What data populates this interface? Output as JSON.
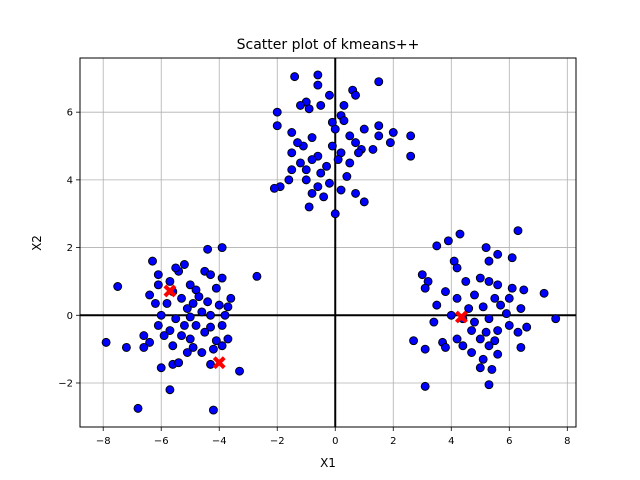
{
  "chart_data": {
    "type": "scatter",
    "title": "Scatter plot of kmeans++",
    "xlabel": "X1",
    "ylabel": "X2",
    "xlim": [
      -8.8,
      8.3
    ],
    "ylim": [
      -3.3,
      7.6
    ],
    "xticks": [
      -8,
      -6,
      -4,
      -2,
      0,
      2,
      4,
      6,
      8
    ],
    "yticks": [
      -2,
      0,
      2,
      4,
      6
    ],
    "xtick_labels": [
      "−8",
      "−6",
      "−4",
      "−2",
      "0",
      "2",
      "4",
      "6",
      "8"
    ],
    "ytick_labels": [
      "−2",
      "0",
      "2",
      "4",
      "6"
    ],
    "grid": true,
    "reference_lines": {
      "x": 0,
      "y": 0,
      "color": "#000000"
    },
    "series": [
      {
        "marker": "circle",
        "color": "#0000ff",
        "edgecolor": "#000000",
        "points": [
          [
            -0.6,
            7.1
          ],
          [
            -1.4,
            7.05
          ],
          [
            -0.6,
            6.8
          ],
          [
            0.6,
            6.65
          ],
          [
            1.5,
            6.9
          ],
          [
            0.7,
            6.5
          ],
          [
            -0.2,
            6.5
          ],
          [
            0.3,
            6.2
          ],
          [
            -1.0,
            6.3
          ],
          [
            -1.2,
            6.2
          ],
          [
            -0.9,
            6.1
          ],
          [
            -0.5,
            6.2
          ],
          [
            -2.0,
            6.0
          ],
          [
            0.2,
            5.9
          ],
          [
            -0.1,
            5.7
          ],
          [
            0.3,
            5.75
          ],
          [
            1.5,
            5.6
          ],
          [
            -2.0,
            5.6
          ],
          [
            1.0,
            5.5
          ],
          [
            0.0,
            5.5
          ],
          [
            -1.5,
            5.4
          ],
          [
            0.5,
            5.3
          ],
          [
            -0.8,
            5.25
          ],
          [
            -1.1,
            5.0
          ],
          [
            -1.3,
            5.1
          ],
          [
            1.5,
            5.3
          ],
          [
            2.0,
            5.4
          ],
          [
            2.6,
            5.3
          ],
          [
            1.9,
            5.1
          ],
          [
            0.7,
            5.1
          ],
          [
            0.9,
            4.9
          ],
          [
            1.3,
            4.9
          ],
          [
            -0.1,
            5.0
          ],
          [
            0.2,
            4.8
          ],
          [
            -0.6,
            4.7
          ],
          [
            -0.8,
            4.6
          ],
          [
            -0.3,
            4.4
          ],
          [
            -1.5,
            4.8
          ],
          [
            -1.2,
            4.5
          ],
          [
            -1.0,
            4.3
          ],
          [
            0.5,
            4.5
          ],
          [
            0.1,
            4.6
          ],
          [
            2.6,
            4.7
          ],
          [
            -0.5,
            4.2
          ],
          [
            -1.0,
            4.0
          ],
          [
            -1.6,
            4.0
          ],
          [
            -0.6,
            3.8
          ],
          [
            -0.2,
            3.9
          ],
          [
            0.4,
            4.1
          ],
          [
            0.2,
            3.7
          ],
          [
            -0.4,
            3.5
          ],
          [
            -1.9,
            3.8
          ],
          [
            -2.1,
            3.75
          ],
          [
            -0.8,
            3.6
          ],
          [
            0.7,
            3.6
          ],
          [
            1.0,
            3.35
          ],
          [
            -0.9,
            3.2
          ],
          [
            0.0,
            3.0
          ],
          [
            -1.5,
            4.3
          ],
          [
            0.8,
            4.8
          ],
          [
            -6.3,
            1.6
          ],
          [
            -4.4,
            1.95
          ],
          [
            -3.9,
            2.0
          ],
          [
            -5.2,
            1.5
          ],
          [
            -5.4,
            1.3
          ],
          [
            -5.5,
            1.4
          ],
          [
            -6.1,
            1.2
          ],
          [
            -5.7,
            1.0
          ],
          [
            -4.5,
            1.3
          ],
          [
            -4.3,
            1.2
          ],
          [
            -3.9,
            1.1
          ],
          [
            -2.7,
            1.15
          ],
          [
            -7.5,
            0.85
          ],
          [
            -6.1,
            0.9
          ],
          [
            -5.0,
            0.9
          ],
          [
            -4.8,
            0.75
          ],
          [
            -4.1,
            0.8
          ],
          [
            -5.6,
            0.7
          ],
          [
            -5.3,
            0.5
          ],
          [
            -4.7,
            0.55
          ],
          [
            -6.2,
            0.35
          ],
          [
            -5.8,
            0.35
          ],
          [
            -4.4,
            0.4
          ],
          [
            -3.6,
            0.5
          ],
          [
            -4.0,
            0.3
          ],
          [
            -5.1,
            0.2
          ],
          [
            -4.6,
            0.1
          ],
          [
            -3.7,
            0.25
          ],
          [
            -6.0,
            0.0
          ],
          [
            -5.5,
            -0.1
          ],
          [
            -5.0,
            -0.05
          ],
          [
            -4.3,
            0.0
          ],
          [
            -3.8,
            0.0
          ],
          [
            -6.1,
            -0.3
          ],
          [
            -5.2,
            -0.3
          ],
          [
            -4.8,
            -0.3
          ],
          [
            -4.3,
            -0.35
          ],
          [
            -3.9,
            -0.3
          ],
          [
            -5.7,
            -0.45
          ],
          [
            -4.5,
            -0.5
          ],
          [
            -6.6,
            -0.6
          ],
          [
            -5.9,
            -0.6
          ],
          [
            -5.3,
            -0.6
          ],
          [
            -5.0,
            -0.7
          ],
          [
            -4.1,
            -0.75
          ],
          [
            -3.7,
            -0.7
          ],
          [
            -7.9,
            -0.8
          ],
          [
            -6.4,
            -0.8
          ],
          [
            -5.6,
            -0.9
          ],
          [
            -4.9,
            -0.95
          ],
          [
            -4.2,
            -1.0
          ],
          [
            -3.9,
            -0.9
          ],
          [
            -7.2,
            -0.95
          ],
          [
            -6.6,
            -0.95
          ],
          [
            -5.1,
            -1.1
          ],
          [
            -4.6,
            -1.1
          ],
          [
            -6.0,
            -1.55
          ],
          [
            -5.6,
            -1.45
          ],
          [
            -5.4,
            -1.4
          ],
          [
            -3.3,
            -1.65
          ],
          [
            -4.3,
            -1.45
          ],
          [
            -5.7,
            -2.2
          ],
          [
            -6.8,
            -2.75
          ],
          [
            -4.2,
            -2.8
          ],
          [
            -6.4,
            0.6
          ],
          [
            -4.9,
            0.35
          ],
          [
            4.3,
            2.4
          ],
          [
            3.9,
            2.2
          ],
          [
            3.5,
            2.05
          ],
          [
            5.2,
            2.0
          ],
          [
            6.3,
            2.5
          ],
          [
            5.6,
            1.8
          ],
          [
            6.1,
            1.7
          ],
          [
            4.1,
            1.6
          ],
          [
            5.3,
            1.6
          ],
          [
            4.2,
            1.4
          ],
          [
            3.0,
            1.2
          ],
          [
            3.2,
            1.0
          ],
          [
            4.5,
            1.0
          ],
          [
            5.0,
            1.1
          ],
          [
            5.3,
            1.0
          ],
          [
            5.6,
            0.9
          ],
          [
            6.1,
            0.8
          ],
          [
            6.5,
            0.75
          ],
          [
            3.8,
            0.7
          ],
          [
            3.1,
            0.8
          ],
          [
            7.2,
            0.65
          ],
          [
            4.8,
            0.6
          ],
          [
            5.5,
            0.5
          ],
          [
            6.0,
            0.5
          ],
          [
            4.2,
            0.5
          ],
          [
            3.5,
            0.3
          ],
          [
            4.6,
            0.2
          ],
          [
            5.1,
            0.25
          ],
          [
            5.7,
            0.3
          ],
          [
            6.4,
            0.2
          ],
          [
            4.0,
            0.0
          ],
          [
            4.4,
            -0.1
          ],
          [
            4.8,
            -0.2
          ],
          [
            5.3,
            -0.1
          ],
          [
            3.4,
            -0.2
          ],
          [
            6.0,
            -0.3
          ],
          [
            6.6,
            -0.35
          ],
          [
            5.9,
            0.05
          ],
          [
            7.6,
            -0.1
          ],
          [
            4.7,
            -0.45
          ],
          [
            5.2,
            -0.5
          ],
          [
            5.6,
            -0.45
          ],
          [
            6.3,
            -0.5
          ],
          [
            4.2,
            -0.7
          ],
          [
            3.7,
            -0.8
          ],
          [
            5.0,
            -0.7
          ],
          [
            5.5,
            -0.75
          ],
          [
            2.7,
            -0.75
          ],
          [
            3.8,
            -0.95
          ],
          [
            4.4,
            -0.9
          ],
          [
            5.3,
            -0.9
          ],
          [
            6.4,
            -0.95
          ],
          [
            3.1,
            -1.0
          ],
          [
            4.7,
            -1.1
          ],
          [
            5.6,
            -1.15
          ],
          [
            5.1,
            -1.3
          ],
          [
            5.4,
            -1.6
          ],
          [
            5.0,
            -1.55
          ],
          [
            3.1,
            -2.1
          ],
          [
            5.3,
            -2.05
          ]
        ]
      },
      {
        "marker": "x",
        "color": "#ff0000",
        "points": [
          [
            -5.7,
            0.72
          ],
          [
            -4.0,
            -1.4
          ],
          [
            4.35,
            -0.05
          ]
        ]
      }
    ]
  }
}
